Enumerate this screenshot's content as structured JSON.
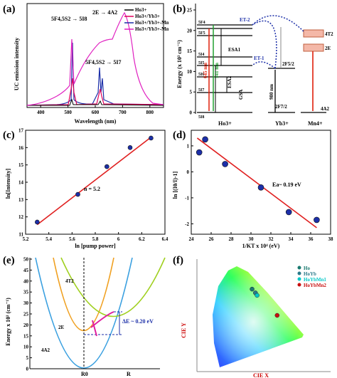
{
  "panels": {
    "a": {
      "label": "(a)",
      "ylabel": "UC emission intensity",
      "xlabel": "Wavelength (nm)",
      "xticks": [
        "400",
        "500",
        "600",
        "700",
        "800"
      ],
      "legend": [
        "Ho3+",
        "Ho3+/Yb3+",
        "Ho3+/Yb3+-Mn4+",
        "Ho3+/Yb3+-Mn4+"
      ],
      "annotations": [
        "5F4,5S2 → 5I8",
        "2E → 4A2",
        "5F4,5S2 → 5I7"
      ],
      "colors": [
        "#000000",
        "#e0005a",
        "#1c2fa8",
        "#e020c0"
      ]
    },
    "b": {
      "label": "(b)",
      "ylabel": "Energy (x 10³ cm⁻¹)",
      "yticks": [
        "0",
        "5",
        "10",
        "15",
        "20",
        "25"
      ],
      "ions": [
        "Ho3+",
        "Yb3+",
        "Mn4+"
      ],
      "ho_levels": [
        "5F4",
        "5F5",
        "5I4",
        "5I5",
        "5I6",
        "5I7",
        "5I8"
      ],
      "yb_levels": [
        "2F5/2",
        "2F7/2"
      ],
      "mn_levels": [
        "4T2",
        "2E",
        "4A2"
      ],
      "labels": [
        "ET-1",
        "ET-2",
        "ESA1",
        "ESA2",
        "GSA",
        "645 nm",
        "541 nm",
        "980 nm"
      ]
    },
    "c": {
      "label": "(c)",
      "ylabel": "ln[Intensity]",
      "xlabel": "ln [pump power]",
      "annotation": "n = 5.2"
    },
    "d": {
      "label": "(d)",
      "ylabel": "ln [(I0/I)-1]",
      "xlabel": "1/KT x 10⁴ (eV)",
      "annotation": "Ea~ 0.19 eV"
    },
    "e": {
      "label": "(e)",
      "ylabel": "Energy x 10³ (cm⁻¹)",
      "yticks": [
        "0",
        "5",
        "10",
        "15",
        "20",
        "25",
        "30",
        "35",
        "40",
        "45",
        "50"
      ],
      "xticks": [
        "R0",
        "R"
      ],
      "curves": [
        "4T2",
        "2E",
        "4A2"
      ],
      "annotation": "ΔE ~ 0.20 eV"
    },
    "f": {
      "label": "(f)",
      "xlabel": "CIE X",
      "ylabel": "CIE Y",
      "legend": [
        "Ho",
        "HoYb",
        "HoYbMn1",
        "HoYbMn2"
      ],
      "legend_colors": [
        "#1a7a70",
        "#2a7a8a",
        "#00c8c8",
        "#c81010"
      ]
    }
  },
  "chart_data": [
    {
      "type": "line",
      "panel": "c",
      "x": [
        5.3,
        5.65,
        5.9,
        6.1,
        6.28
      ],
      "y": [
        11.7,
        13.3,
        14.9,
        16.0,
        16.55
      ],
      "fit": {
        "x": [
          5.3,
          6.28
        ],
        "y": [
          11.55,
          16.6
        ]
      },
      "xlim": [
        5.2,
        6.4
      ],
      "ylim": [
        11,
        17
      ],
      "xticks": [
        5.2,
        5.4,
        5.6,
        5.8,
        6.0,
        6.2,
        6.4
      ],
      "yticks": [
        11,
        12,
        13,
        14,
        15,
        16,
        17
      ]
    },
    {
      "type": "scatter",
      "panel": "d",
      "x": [
        24.8,
        25.4,
        27.4,
        31.0,
        33.8,
        36.6
      ],
      "y": [
        0.75,
        1.25,
        0.3,
        -0.6,
        -1.55,
        -1.85
      ],
      "fit": {
        "x": [
          24.6,
          36.6
        ],
        "y": [
          1.3,
          -2.15
        ]
      },
      "xlim": [
        24,
        38
      ],
      "ylim": [
        -2.4,
        1.6
      ],
      "xticks": [
        24,
        26,
        28,
        30,
        32,
        34,
        36,
        38
      ],
      "yticks": [
        -2,
        -1,
        0,
        1
      ]
    },
    {
      "type": "scatter",
      "panel": "f",
      "x": [
        0.33,
        0.35,
        0.36,
        0.48
      ],
      "y": [
        0.66,
        0.63,
        0.61,
        0.45
      ],
      "xlim": [
        0,
        0.8
      ],
      "ylim": [
        0,
        0.9
      ]
    }
  ]
}
